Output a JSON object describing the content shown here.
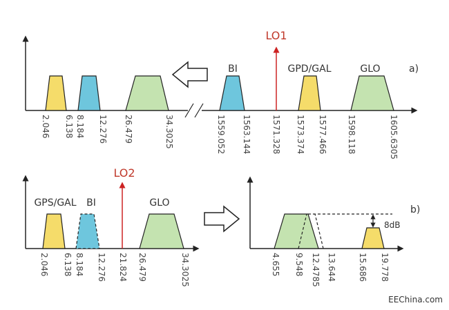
{
  "colors": {
    "yellow": "#f5dc6a",
    "blue": "#6ec6dd",
    "green": "#c4e3b0",
    "lo": "#cc2222",
    "axis": "#222222"
  },
  "panel_a": {
    "label": "a)",
    "lo_label": "LO1",
    "band_labels": [
      "BI",
      "GPD/GAL",
      "GLO"
    ],
    "ticks": [
      "2.046",
      "6.138",
      "8.184",
      "12.276",
      "26.479",
      "34.3025",
      "1559.052",
      "1563.144",
      "1571.328",
      "1573.374",
      "1577.466",
      "1598.118",
      "1605.6305"
    ]
  },
  "panel_lo2": {
    "lo_label": "LO2",
    "band_labels": [
      "GPS/GAL",
      "BI",
      "GLO"
    ],
    "ticks": [
      "2.046",
      "6.138",
      "8.184",
      "12.276",
      "21.824",
      "26.479",
      "34.3025"
    ]
  },
  "panel_b": {
    "label": "b)",
    "note": "8dB",
    "ticks": [
      "4.655",
      "9.548",
      "12.4785",
      "13.644",
      "15.686",
      "19.778"
    ]
  },
  "credit": "EEChina.com"
}
